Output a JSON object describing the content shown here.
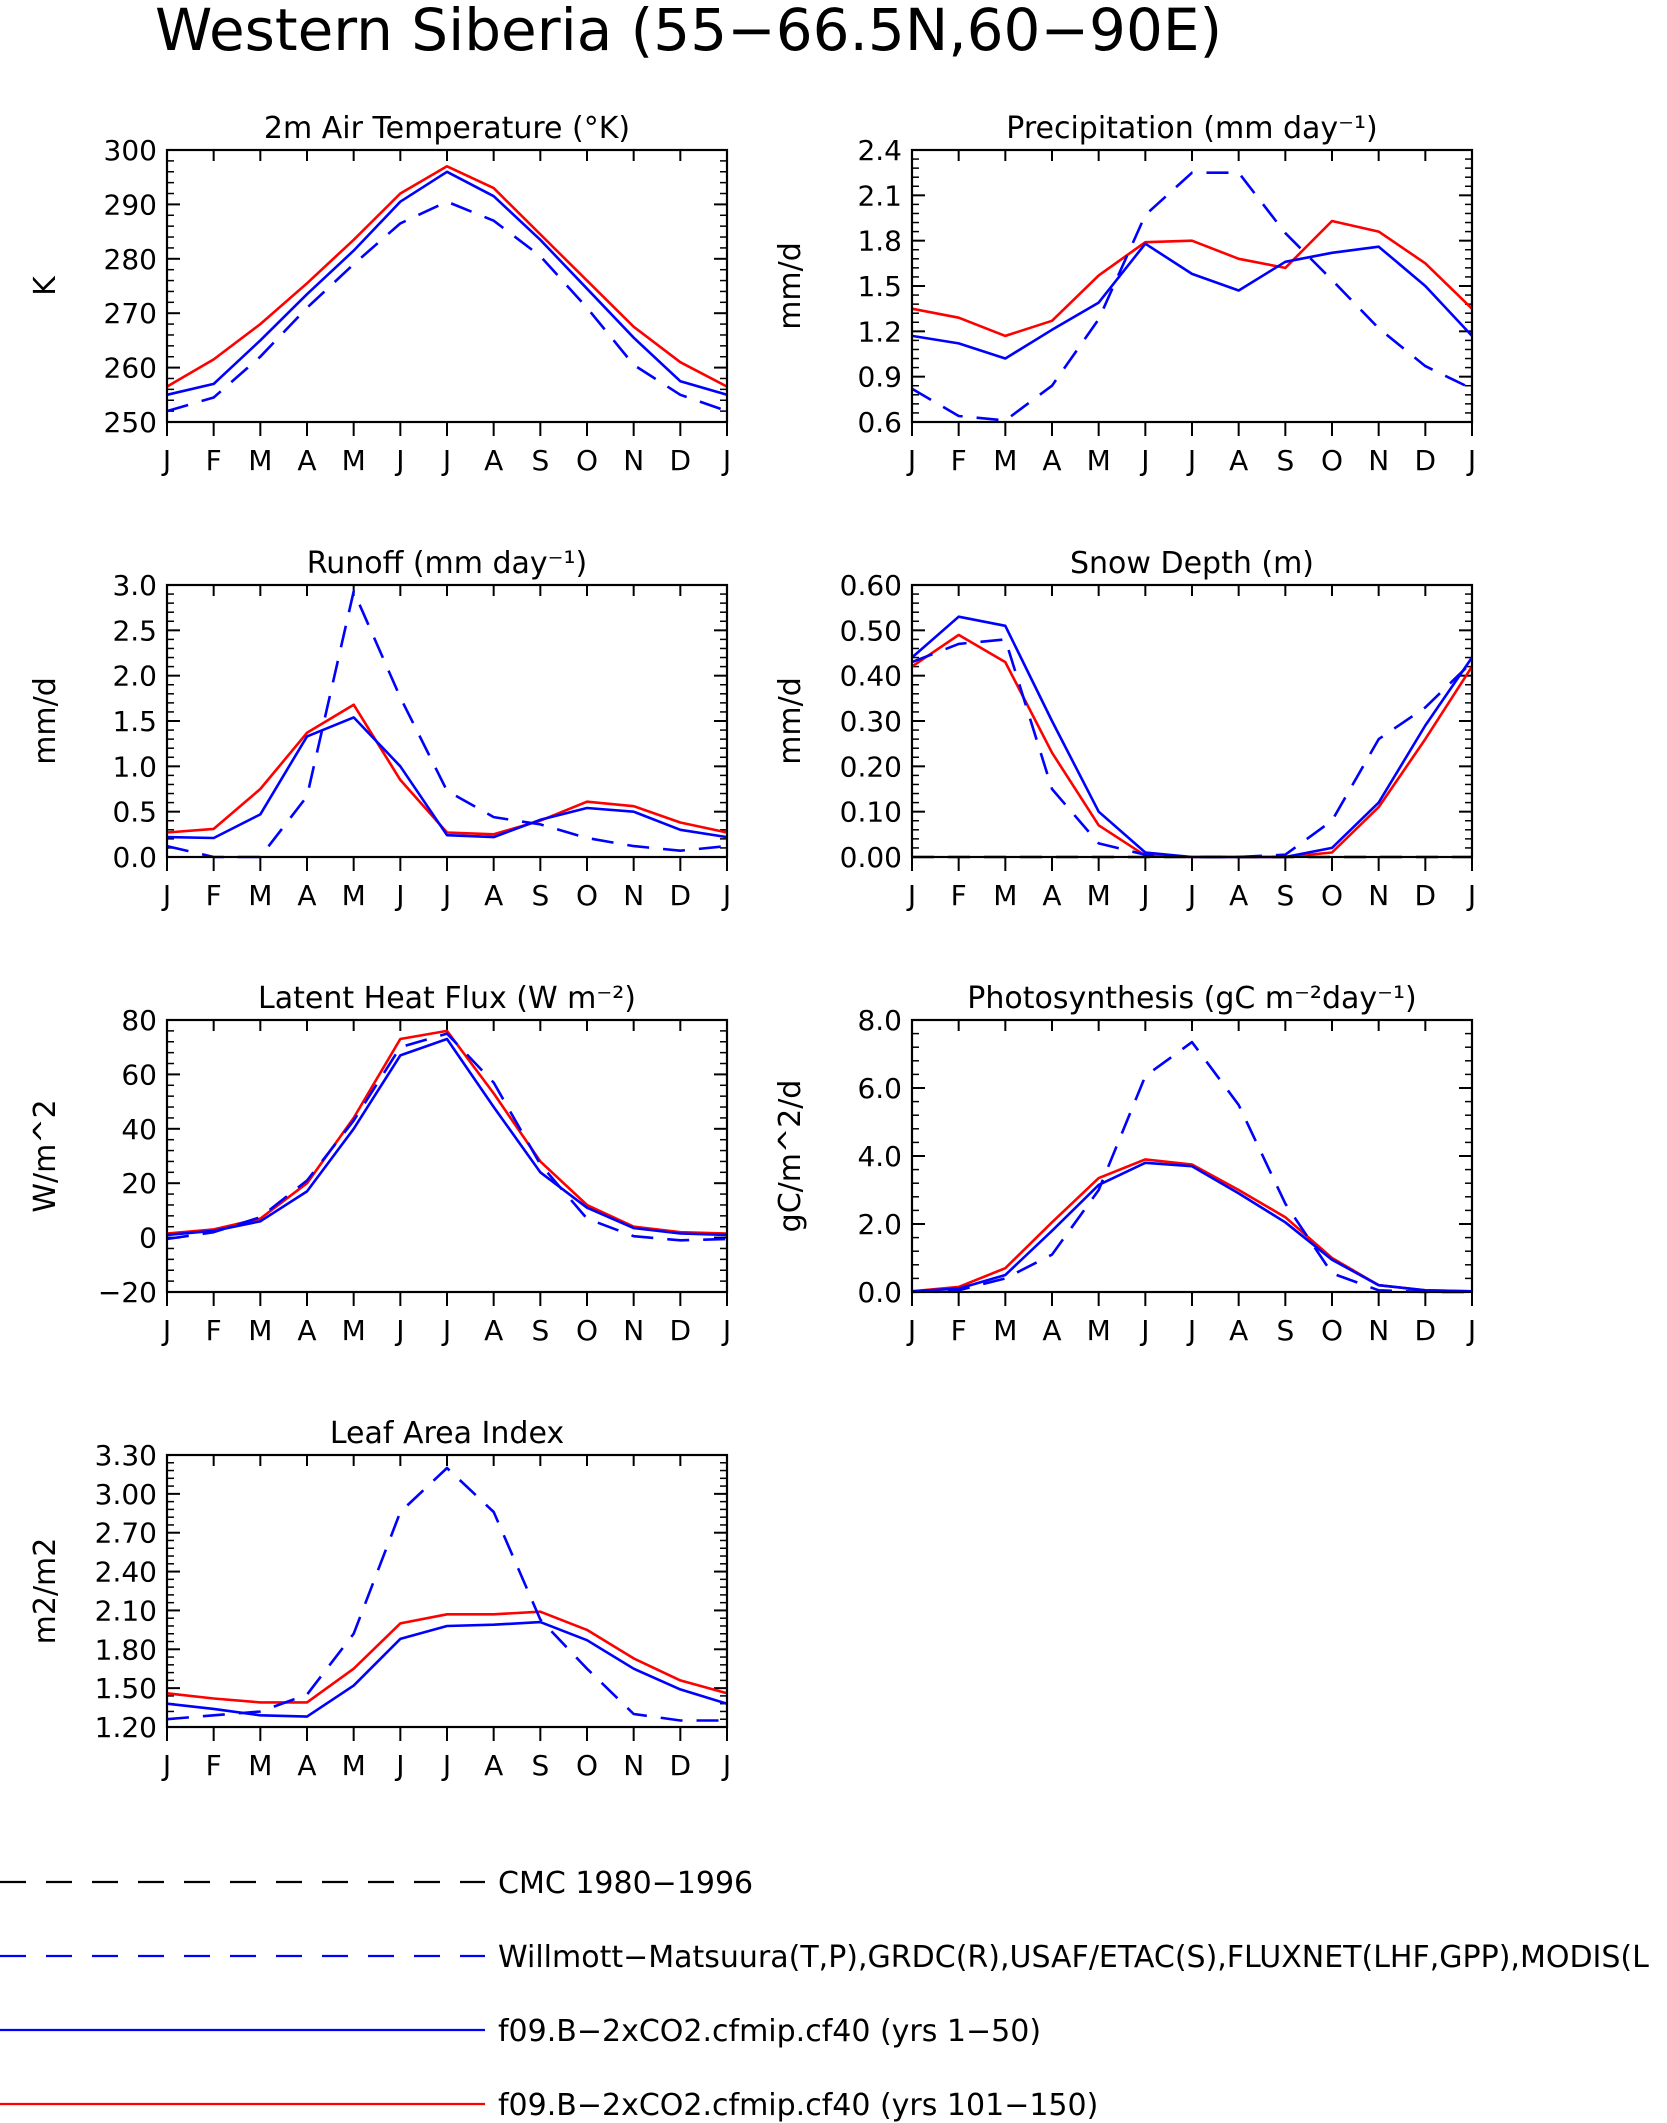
{
  "figure": {
    "title": "Western Siberia (55−66.5N,60−90E)"
  },
  "colors": {
    "model_1_50": "#0000ff",
    "model_101_150": "#ff0000",
    "observed": "#0000ff",
    "cmc": "#000000"
  },
  "legend": {
    "cmc": "CMC 1980−1996",
    "observed": "Willmott−Matsuura(T,P),GRDC(R),USAF/ETAC(S),FLUXNET(LHF,GPP),MODIS(L",
    "model_1_50": "f09.B−2xCO2.cfmip.cf40 (yrs 1−50)",
    "model_101_150": "f09.B−2xCO2.cfmip.cf40 (yrs 101−150)"
  },
  "chart_data": [
    {
      "type": "line",
      "title": "2m Air Temperature (°K)",
      "ylabel": "K",
      "ylim": [
        250,
        300
      ],
      "yticks": [
        "250",
        "260",
        "270",
        "280",
        "290",
        "300"
      ],
      "categories": [
        "J",
        "F",
        "M",
        "A",
        "M",
        "J",
        "J",
        "A",
        "S",
        "O",
        "N",
        "D",
        "J"
      ],
      "series": [
        {
          "name": "f09.B−2xCO2.cfmip.cf40 (yrs 101−150)",
          "style": "model_101_150",
          "values": [
            256.5,
            261.5,
            268,
            275.5,
            283.5,
            292,
            297,
            293,
            284.5,
            276,
            267.5,
            261,
            256.5
          ]
        },
        {
          "name": "f09.B−2xCO2.cfmip.cf40 (yrs 1−50)",
          "style": "model_1_50",
          "values": [
            255,
            257,
            265,
            273.5,
            281.5,
            290.5,
            296,
            291.5,
            283.5,
            274.5,
            265.5,
            257.5,
            255
          ]
        },
        {
          "name": "Willmott−Matsuura(T,P),GRDC(R),USAF/ETAC(S),FLUXNET(LHF,GPP),MODIS(L",
          "style": "observed",
          "values": [
            252,
            254.5,
            262,
            271,
            279,
            286.5,
            290.5,
            287,
            280.5,
            271,
            260.5,
            255,
            252
          ]
        }
      ]
    },
    {
      "type": "line",
      "title": "Precipitation (mm day⁻¹)",
      "ylabel": "mm/d",
      "ylim": [
        0.6,
        2.4
      ],
      "yticks": [
        "0.6",
        "0.9",
        "1.2",
        "1.5",
        "1.8",
        "2.1",
        "2.4"
      ],
      "categories": [
        "J",
        "F",
        "M",
        "A",
        "M",
        "J",
        "J",
        "A",
        "S",
        "O",
        "N",
        "D",
        "J"
      ],
      "series": [
        {
          "name": "f09.B−2xCO2.cfmip.cf40 (yrs 101−150)",
          "style": "model_101_150",
          "values": [
            1.35,
            1.29,
            1.17,
            1.27,
            1.57,
            1.79,
            1.8,
            1.68,
            1.62,
            1.93,
            1.86,
            1.65,
            1.35
          ]
        },
        {
          "name": "f09.B−2xCO2.cfmip.cf40 (yrs 1−50)",
          "style": "model_1_50",
          "values": [
            1.17,
            1.12,
            1.02,
            1.21,
            1.39,
            1.78,
            1.58,
            1.47,
            1.66,
            1.72,
            1.76,
            1.5,
            1.17
          ]
        },
        {
          "name": "Willmott−Matsuura(T,P),GRDC(R),USAF/ETAC(S),FLUXNET(LHF,GPP),MODIS(L",
          "style": "observed",
          "values": [
            0.82,
            0.64,
            0.61,
            0.84,
            1.28,
            1.97,
            2.25,
            2.25,
            1.85,
            1.54,
            1.22,
            0.97,
            0.82
          ]
        }
      ]
    },
    {
      "type": "line",
      "title": "Runoff (mm day⁻¹)",
      "ylabel": "mm/d",
      "ylim": [
        0,
        3
      ],
      "yticks": [
        "0.0",
        "0.5",
        "1.0",
        "1.5",
        "2.0",
        "2.5",
        "3.0"
      ],
      "categories": [
        "J",
        "F",
        "M",
        "A",
        "M",
        "J",
        "J",
        "A",
        "S",
        "O",
        "N",
        "D",
        "J"
      ],
      "series": [
        {
          "name": "f09.B−2xCO2.cfmip.cf40 (yrs 101−150)",
          "style": "model_101_150",
          "values": [
            0.27,
            0.31,
            0.75,
            1.37,
            1.68,
            0.85,
            0.27,
            0.25,
            0.4,
            0.61,
            0.56,
            0.38,
            0.27
          ]
        },
        {
          "name": "f09.B−2xCO2.cfmip.cf40 (yrs 1−50)",
          "style": "model_1_50",
          "values": [
            0.22,
            0.21,
            0.47,
            1.33,
            1.54,
            1.0,
            0.24,
            0.22,
            0.41,
            0.54,
            0.5,
            0.3,
            0.22
          ]
        },
        {
          "name": "Willmott−Matsuura(T,P),GRDC(R),USAF/ETAC(S),FLUXNET(LHF,GPP),MODIS(L",
          "style": "observed",
          "values": [
            0.12,
            0,
            0,
            0.67,
            2.93,
            1.76,
            0.73,
            0.44,
            0.36,
            0.21,
            0.12,
            0.07,
            0.12
          ]
        }
      ]
    },
    {
      "type": "line",
      "title": "Snow Depth (m)",
      "ylabel": "mm/d",
      "ylim": [
        0,
        0.6
      ],
      "yticks": [
        "0.00",
        "0.10",
        "0.20",
        "0.30",
        "0.40",
        "0.50",
        "0.60"
      ],
      "categories": [
        "J",
        "F",
        "M",
        "A",
        "M",
        "J",
        "J",
        "A",
        "S",
        "O",
        "N",
        "D",
        "J"
      ],
      "series": [
        {
          "name": "f09.B−2xCO2.cfmip.cf40 (yrs 101−150)",
          "style": "model_101_150",
          "values": [
            0.42,
            0.49,
            0.43,
            0.23,
            0.07,
            0.003,
            0,
            0,
            0,
            0.01,
            0.11,
            0.26,
            0.42
          ]
        },
        {
          "name": "f09.B−2xCO2.cfmip.cf40 (yrs 1−50)",
          "style": "model_1_50",
          "values": [
            0.44,
            0.53,
            0.51,
            0.3,
            0.1,
            0.01,
            0,
            0,
            0,
            0.02,
            0.12,
            0.29,
            0.44
          ]
        },
        {
          "name": "Willmott−Matsuura(T,P),GRDC(R),USAF/ETAC(S),FLUXNET(LHF,GPP),MODIS(L",
          "style": "observed",
          "values": [
            0.43,
            0.47,
            0.48,
            0.15,
            0.03,
            0.005,
            0,
            0,
            0.005,
            0.08,
            0.26,
            0.33,
            0.43
          ]
        },
        {
          "name": "CMC 1980−1996",
          "style": "cmc",
          "values": [
            0,
            0,
            0,
            0,
            0,
            0,
            0,
            0,
            0,
            0,
            0,
            0,
            0
          ]
        }
      ]
    },
    {
      "type": "line",
      "title": "Latent Heat Flux (W m⁻²)",
      "ylabel": "W/m^2",
      "ylim": [
        -20,
        80
      ],
      "yticks": [
        "−20",
        "0",
        "20",
        "40",
        "60",
        "80"
      ],
      "categories": [
        "J",
        "F",
        "M",
        "A",
        "M",
        "J",
        "J",
        "A",
        "S",
        "O",
        "N",
        "D",
        "J"
      ],
      "series": [
        {
          "name": "f09.B−2xCO2.cfmip.cf40 (yrs 101−150)",
          "style": "model_101_150",
          "values": [
            1.5,
            3,
            7,
            20,
            44,
            73,
            76,
            53,
            28,
            12,
            4,
            2,
            1.5
          ]
        },
        {
          "name": "f09.B−2xCO2.cfmip.cf40 (yrs 1−50)",
          "style": "model_1_50",
          "values": [
            1,
            2.5,
            6,
            17,
            40,
            67,
            73,
            48,
            24,
            11,
            3.5,
            1.5,
            1
          ]
        },
        {
          "name": "Willmott−Matsuura(T,P),GRDC(R),USAF/ETAC(S),FLUXNET(LHF,GPP),MODIS(L",
          "style": "observed",
          "values": [
            -0.5,
            2,
            7.5,
            21,
            43,
            70,
            75,
            57,
            27,
            7,
            0.5,
            -1,
            -0.5
          ]
        }
      ]
    },
    {
      "type": "line",
      "title": "Photosynthesis (gC m⁻²day⁻¹)",
      "ylabel": "gC/m^2/d",
      "ylim": [
        0,
        8
      ],
      "yticks": [
        "0.0",
        "2.0",
        "4.0",
        "6.0",
        "8.0"
      ],
      "categories": [
        "J",
        "F",
        "M",
        "A",
        "M",
        "J",
        "J",
        "A",
        "S",
        "O",
        "N",
        "D",
        "J"
      ],
      "series": [
        {
          "name": "f09.B−2xCO2.cfmip.cf40 (yrs 101−150)",
          "style": "model_101_150",
          "values": [
            0.02,
            0.15,
            0.7,
            2.05,
            3.35,
            3.9,
            3.75,
            3.0,
            2.2,
            1.0,
            0.2,
            0.05,
            0.02
          ]
        },
        {
          "name": "f09.B−2xCO2.cfmip.cf40 (yrs 1−50)",
          "style": "model_1_50",
          "values": [
            0.02,
            0.1,
            0.5,
            1.8,
            3.15,
            3.8,
            3.7,
            2.9,
            2.05,
            0.95,
            0.2,
            0.05,
            0.02
          ]
        },
        {
          "name": "Willmott−Matsuura(T,P),GRDC(R),USAF/ETAC(S),FLUXNET(LHF,GPP),MODIS(L",
          "style": "observed",
          "values": [
            0,
            0.05,
            0.4,
            1.1,
            3.0,
            6.35,
            7.35,
            5.5,
            2.6,
            0.55,
            0.05,
            0,
            0
          ]
        }
      ]
    },
    {
      "type": "line",
      "title": "Leaf Area Index",
      "ylabel": "m2/m2",
      "ylim": [
        1.2,
        3.3
      ],
      "yticks": [
        "1.20",
        "1.50",
        "1.80",
        "2.10",
        "2.40",
        "2.70",
        "3.00",
        "3.30"
      ],
      "categories": [
        "J",
        "F",
        "M",
        "A",
        "M",
        "J",
        "J",
        "A",
        "S",
        "O",
        "N",
        "D",
        "J"
      ],
      "series": [
        {
          "name": "f09.B−2xCO2.cfmip.cf40 (yrs 101−150)",
          "style": "model_101_150",
          "values": [
            1.46,
            1.42,
            1.39,
            1.39,
            1.65,
            2.0,
            2.07,
            2.07,
            2.09,
            1.95,
            1.73,
            1.56,
            1.46
          ]
        },
        {
          "name": "f09.B−2xCO2.cfmip.cf40 (yrs 1−50)",
          "style": "model_1_50",
          "values": [
            1.38,
            1.34,
            1.29,
            1.28,
            1.52,
            1.88,
            1.98,
            1.99,
            2.01,
            1.87,
            1.65,
            1.49,
            1.38
          ]
        },
        {
          "name": "Willmott−Matsuura(T,P),GRDC(R),USAF/ETAC(S),FLUXNET(LHF,GPP),MODIS(L",
          "style": "observed",
          "values": [
            1.26,
            1.29,
            1.32,
            1.45,
            1.92,
            2.86,
            3.2,
            2.86,
            2.03,
            1.65,
            1.3,
            1.25,
            1.25
          ]
        }
      ]
    }
  ]
}
